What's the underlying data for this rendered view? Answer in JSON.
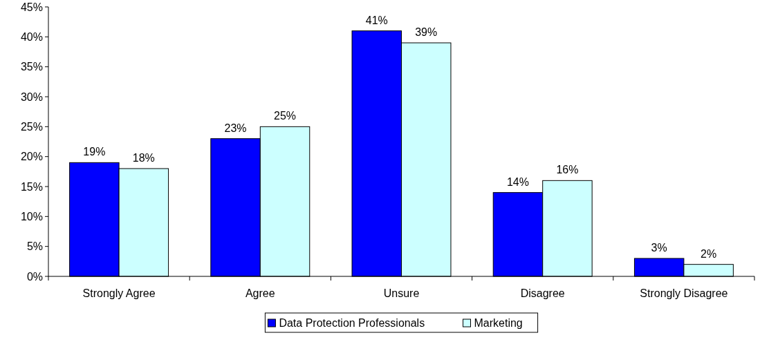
{
  "chart_data": {
    "type": "bar",
    "categories": [
      "Strongly Agree",
      "Agree",
      "Unsure",
      "Disagree",
      "Strongly Disagree"
    ],
    "series": [
      {
        "name": "Data Protection Professionals",
        "color": "#0000ff",
        "values": [
          19,
          23,
          41,
          14,
          3
        ],
        "value_labels": [
          "19%",
          "23%",
          "41%",
          "14%",
          "3%"
        ]
      },
      {
        "name": "Marketing",
        "color": "#ccffff",
        "values": [
          18,
          25,
          39,
          16,
          2
        ],
        "value_labels": [
          "18%",
          "25%",
          "39%",
          "16%",
          "2%"
        ]
      }
    ],
    "ylim": [
      0,
      45
    ],
    "yticks": [
      {
        "value": 0,
        "label": "0%"
      },
      {
        "value": 5,
        "label": "5%"
      },
      {
        "value": 10,
        "label": "10%"
      },
      {
        "value": 15,
        "label": "15%"
      },
      {
        "value": 20,
        "label": "20%"
      },
      {
        "value": 25,
        "label": "25%"
      },
      {
        "value": 30,
        "label": "30%"
      },
      {
        "value": 35,
        "label": "35%"
      },
      {
        "value": 40,
        "label": "40%"
      },
      {
        "value": 45,
        "label": "45%"
      }
    ],
    "grid": false,
    "legend": "bottom"
  }
}
